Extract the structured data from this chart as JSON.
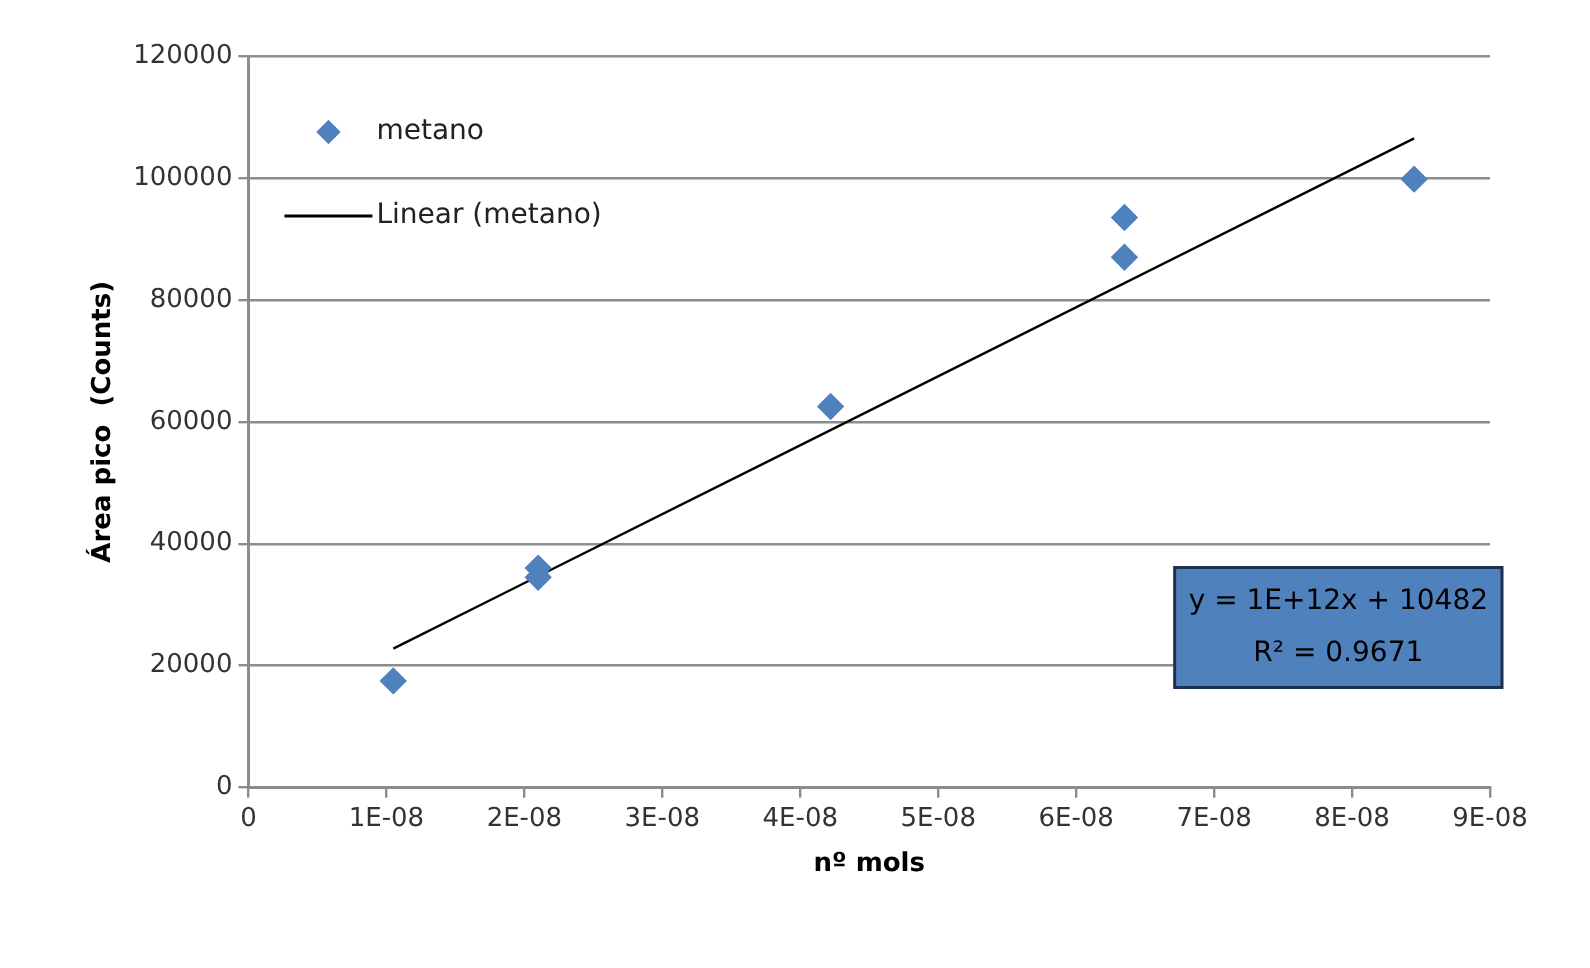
{
  "chart_data": {
    "type": "scatter",
    "xlabel": "nº mols",
    "ylabel": "Área pico  (Counts)",
    "xlim": [
      0,
      9e-08
    ],
    "xticks": [
      0,
      {
        "value": 1e-08,
        "label": "1E-08"
      },
      {
        "value": 2e-08,
        "label": "2E-08"
      },
      {
        "value": 3e-08,
        "label": "3E-08"
      },
      {
        "value": 4e-08,
        "label": "4E-08"
      },
      {
        "value": 5e-08,
        "label": "5E-08"
      },
      {
        "value": 6e-08,
        "label": "6E-08"
      },
      {
        "value": 7e-08,
        "label": "7E-08"
      },
      {
        "value": 8e-08,
        "label": "8E-08"
      },
      {
        "value": 9e-08,
        "label": "9E-08"
      }
    ],
    "ylim": [
      0,
      120000
    ],
    "yticks": [
      0,
      20000,
      40000,
      60000,
      80000,
      100000,
      120000
    ],
    "grid": "y",
    "legend": "top left",
    "marker": "diamond",
    "series": [
      {
        "name": "metano",
        "color": "#4f81bd",
        "x": [
          1.05e-08,
          2.1e-08,
          2.1e-08,
          4.22e-08,
          6.35e-08,
          6.35e-08,
          8.45e-08
        ],
        "values": [
          17500,
          36000,
          34500,
          62500,
          93500,
          87000,
          99800
        ]
      },
      {
        "name": "Linear (metano)",
        "type": "line",
        "color": "#000000",
        "marker": "none",
        "line_style": "solid",
        "x": [
          1.05e-08,
          8.45e-08
        ],
        "values": [
          22800,
          106500
        ]
      }
    ],
    "annotations": [
      "y = 1E+12x + 10482",
      "R² = 0.9671"
    ]
  }
}
